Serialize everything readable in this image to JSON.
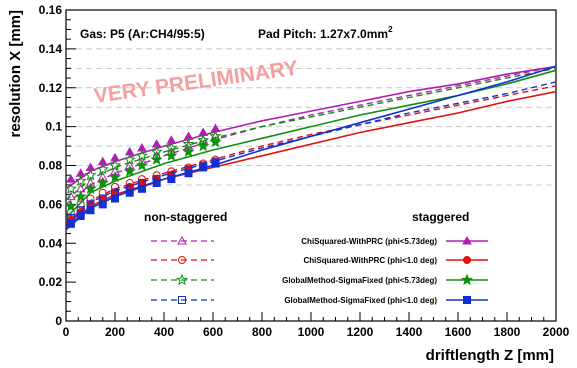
{
  "chart_data": {
    "type": "line",
    "title": "",
    "xlabel": "driftlength Z [mm]",
    "ylabel": "resolution X [mm]",
    "xlim": [
      0,
      2000
    ],
    "ylim": [
      0,
      0.16
    ],
    "x_ticks": [
      "0",
      "200",
      "400",
      "600",
      "800",
      "1000",
      "1200",
      "1400",
      "1600",
      "1800",
      "2000"
    ],
    "y_ticks": [
      "0",
      "0.02",
      "0.04",
      "0.06",
      "0.08",
      "0.1",
      "0.12",
      "0.14",
      "0.16"
    ],
    "grid": "horizontal-dashed",
    "annotations": {
      "gas": "Gas: P5 (Ar:CH4/95:5)",
      "pad_pitch_prefix": "Pad Pitch: 1.27x7.0mm",
      "pad_pitch_sup": "2",
      "watermark": "VERY PRELIMINARY"
    },
    "legend": {
      "position": "bottom-center",
      "header_left": "non-staggered",
      "header_right": "staggered"
    },
    "series": [
      {
        "name": "ChiSquared-WithPRC (phi<5.73deg)",
        "color": "#b020b0",
        "marker": "triangle",
        "nonstaggered_points": {
          "x": [
            20,
            60,
            100,
            150,
            200,
            260,
            310,
            370,
            430,
            500,
            560,
            610
          ],
          "y": [
            0.064,
            0.068,
            0.071,
            0.074,
            0.077,
            0.08,
            0.082,
            0.085,
            0.087,
            0.09,
            0.093,
            0.095
          ]
        },
        "nonstaggered_fit": {
          "x": [
            0,
            100,
            200,
            400,
            600,
            800,
            1000,
            1200,
            1400,
            1600,
            1800,
            2000
          ],
          "y": [
            0.06,
            0.07,
            0.076,
            0.085,
            0.093,
            0.1,
            0.106,
            0.111,
            0.116,
            0.121,
            0.126,
            0.131
          ]
        },
        "staggered_points": {
          "x": [
            20,
            60,
            100,
            150,
            200,
            260,
            310,
            370,
            430,
            500,
            560,
            610
          ],
          "y": [
            0.073,
            0.076,
            0.079,
            0.082,
            0.084,
            0.087,
            0.089,
            0.091,
            0.093,
            0.095,
            0.097,
            0.099
          ]
        },
        "staggered_fit": {
          "x": [
            0,
            100,
            200,
            400,
            600,
            800,
            1000,
            1200,
            1400,
            1600,
            1800,
            2000
          ],
          "y": [
            0.068,
            0.077,
            0.082,
            0.09,
            0.097,
            0.103,
            0.108,
            0.113,
            0.118,
            0.122,
            0.127,
            0.131
          ]
        }
      },
      {
        "name": "ChiSquared-WithPRC (phi<1.0 deg)",
        "color": "#e01010",
        "marker": "circle",
        "nonstaggered_points": {
          "x": [
            20,
            60,
            100,
            150,
            200,
            260,
            310,
            370,
            430,
            500,
            560,
            610
          ],
          "y": [
            0.056,
            0.06,
            0.063,
            0.066,
            0.069,
            0.071,
            0.073,
            0.075,
            0.077,
            0.079,
            0.081,
            0.083
          ]
        },
        "nonstaggered_fit": {
          "x": [
            0,
            100,
            200,
            400,
            600,
            800,
            1000,
            1200,
            1400,
            1600,
            1800,
            2000
          ],
          "y": [
            0.05,
            0.062,
            0.068,
            0.076,
            0.083,
            0.09,
            0.096,
            0.101,
            0.106,
            0.111,
            0.116,
            0.121
          ]
        },
        "staggered_points": {
          "x": [
            20,
            60,
            100,
            150,
            200,
            260,
            310,
            370,
            430,
            500,
            560,
            610
          ],
          "y": [
            0.052,
            0.056,
            0.06,
            0.063,
            0.066,
            0.069,
            0.071,
            0.073,
            0.075,
            0.078,
            0.08,
            0.082
          ]
        },
        "staggered_fit": {
          "x": [
            0,
            100,
            200,
            400,
            600,
            800,
            1000,
            1200,
            1400,
            1600,
            1800,
            2000
          ],
          "y": [
            0.048,
            0.059,
            0.065,
            0.073,
            0.079,
            0.085,
            0.091,
            0.097,
            0.102,
            0.107,
            0.113,
            0.118
          ]
        }
      },
      {
        "name": "GlobalMethod-SigmaFixed (phi<5.73deg)",
        "color": "#109010",
        "marker": "star",
        "nonstaggered_points": {
          "x": [
            20,
            60,
            100,
            150,
            200,
            260,
            310,
            370,
            430,
            500,
            560,
            610
          ],
          "y": [
            0.068,
            0.072,
            0.075,
            0.078,
            0.08,
            0.083,
            0.085,
            0.087,
            0.089,
            0.091,
            0.093,
            0.095
          ]
        },
        "nonstaggered_fit": {
          "x": [
            0,
            100,
            200,
            400,
            600,
            800,
            1000,
            1200,
            1400,
            1600,
            1800,
            2000
          ],
          "y": [
            0.062,
            0.073,
            0.079,
            0.087,
            0.094,
            0.1,
            0.105,
            0.11,
            0.115,
            0.12,
            0.125,
            0.13
          ]
        },
        "staggered_points": {
          "x": [
            20,
            60,
            100,
            150,
            200,
            260,
            310,
            370,
            430,
            500,
            560,
            610
          ],
          "y": [
            0.059,
            0.064,
            0.068,
            0.071,
            0.074,
            0.077,
            0.08,
            0.083,
            0.085,
            0.087,
            0.09,
            0.092
          ]
        },
        "staggered_fit": {
          "x": [
            0,
            100,
            200,
            400,
            600,
            800,
            1000,
            1200,
            1400,
            1600,
            1800,
            2000
          ],
          "y": [
            0.053,
            0.066,
            0.072,
            0.081,
            0.088,
            0.094,
            0.1,
            0.106,
            0.111,
            0.116,
            0.122,
            0.129
          ]
        }
      },
      {
        "name": "GlobalMethod-SigmaFixed (phi<1.0 deg)",
        "color": "#1030d0",
        "marker": "square",
        "nonstaggered_points": {
          "x": [
            20,
            60,
            100,
            150,
            200,
            260,
            310,
            370,
            430,
            500,
            560,
            610
          ],
          "y": [
            0.053,
            0.057,
            0.06,
            0.063,
            0.066,
            0.068,
            0.071,
            0.073,
            0.075,
            0.078,
            0.08,
            0.082
          ]
        },
        "nonstaggered_fit": {
          "x": [
            0,
            100,
            200,
            400,
            600,
            800,
            1000,
            1200,
            1400,
            1600,
            1800,
            2000
          ],
          "y": [
            0.049,
            0.061,
            0.067,
            0.075,
            0.082,
            0.089,
            0.095,
            0.101,
            0.107,
            0.112,
            0.117,
            0.123
          ]
        },
        "staggered_points": {
          "x": [
            20,
            60,
            100,
            150,
            200,
            260,
            310,
            370,
            430,
            500,
            560,
            610
          ],
          "y": [
            0.05,
            0.054,
            0.057,
            0.06,
            0.063,
            0.066,
            0.068,
            0.071,
            0.073,
            0.076,
            0.079,
            0.081
          ]
        },
        "staggered_fit": {
          "x": [
            0,
            100,
            200,
            400,
            600,
            800,
            1000,
            1200,
            1400,
            1600,
            1800,
            2000
          ],
          "y": [
            0.047,
            0.058,
            0.064,
            0.073,
            0.08,
            0.088,
            0.095,
            0.102,
            0.109,
            0.116,
            0.123,
            0.131
          ]
        }
      }
    ]
  }
}
